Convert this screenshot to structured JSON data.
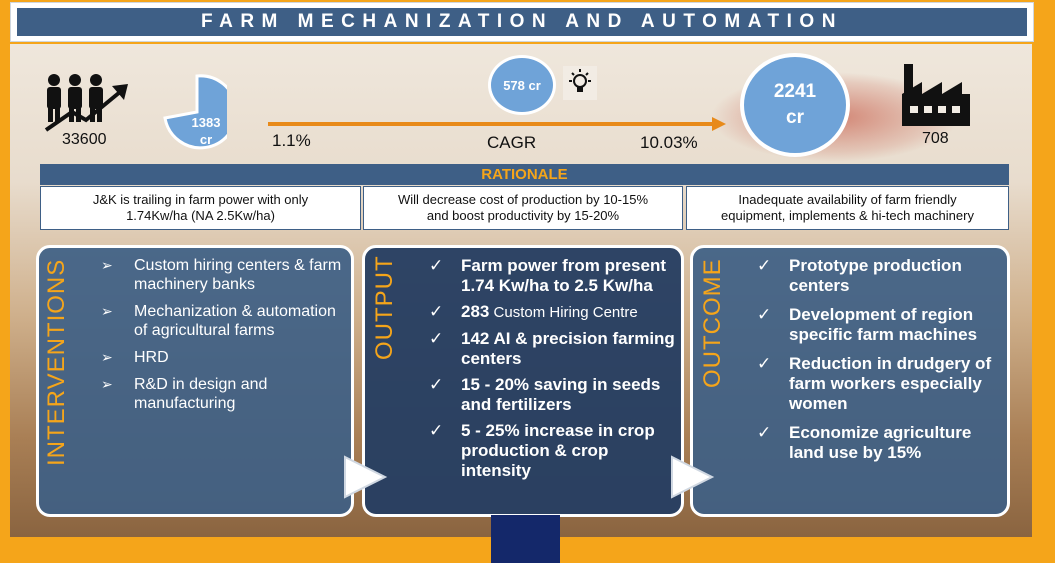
{
  "title": "FARM MECHANIZATION AND AUTOMATION",
  "stats": {
    "farmers": "33600",
    "left_value": "1383 cr",
    "left_value_line1": "1383",
    "left_value_line2": "cr",
    "growth_left": "1.1%",
    "center_value": "578 cr",
    "cagr_label": "CAGR",
    "growth_right": "10.03%",
    "right_value_line1": "2241",
    "right_value_line2": "cr",
    "units": "708"
  },
  "icons": {
    "people": "people-growth-icon",
    "bulb": "lightbulb-icon",
    "factory": "factory-icon",
    "pie": "pie-chart-icon",
    "arrow": "arrow-right-icon"
  },
  "rationale": {
    "header": "RATIONALE",
    "items": [
      {
        "line1": "J&K is trailing in farm power with only",
        "line2": "1.74Kw/ha (NA 2.5Kw/ha)"
      },
      {
        "line1": "Will decrease cost of production by 10-15%",
        "line2": "and boost productivity by 15-20%"
      },
      {
        "line1": "Inadequate availability of farm friendly",
        "line2": "equipment, implements & hi-tech machinery"
      }
    ]
  },
  "panels": {
    "interventions": {
      "title": "INTERVENTIONS",
      "bullet": "➢",
      "items": [
        "Custom hiring centers & farm machinery banks",
        "Mechanization & automation of agricultural farms",
        "HRD",
        "R&D in design and manufacturing"
      ]
    },
    "output": {
      "title": "OUTPUT",
      "bullet": "✓",
      "items": [
        {
          "bold": "Farm power from present 1.74 Kw/ha to 2.5 Kw/ha",
          "normal": ""
        },
        {
          "bold": "283",
          "normal": " Custom Hiring Centre"
        },
        {
          "bold": "142 AI & precision farming centers",
          "normal": ""
        },
        {
          "bold": "15 - 20% saving in seeds and fertilizers",
          "normal": ""
        },
        {
          "bold": "5 - 25% increase in crop production & crop intensity",
          "normal": ""
        }
      ]
    },
    "outcome": {
      "title": "OUTCOME",
      "bullet": "✓",
      "items": [
        "Prototype production centers",
        "Development of region specific farm machines",
        "Reduction in drudgery of farm workers especially women",
        "Economize agriculture land use by 15%"
      ]
    }
  },
  "colors": {
    "orange": "#f5a51a",
    "navy": "#3e5f86",
    "dark_navy": "#14286a",
    "light_blue": "#6fa3d8"
  }
}
